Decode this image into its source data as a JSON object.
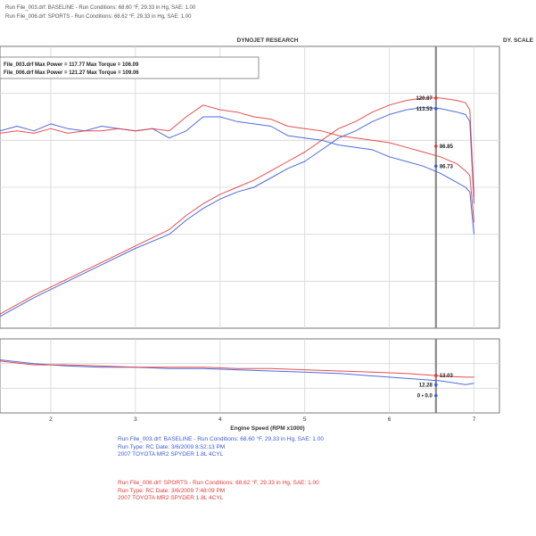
{
  "header": {
    "line1": "Run File_003.drf: BASELINE  -  Run Conditions: 68.60 °F, 29.33 in Hg, SAE: 1.00",
    "line2": "Run File_006.drf: SPORTS  -  Run Conditions: 68.62 °F, 29.33 in Hg, SAE: 1.00",
    "title": "DYNOJET RESEARCH",
    "corner": "DY. SCALE"
  },
  "chart_data": [
    {
      "type": "line",
      "title": "DYNOJET RESEARCH",
      "annotations_box": [
        "File_003.drf Max Power = 117.77     Max Torque = 106.09",
        "File_006.drf Max Power = 121.27     Max Torque = 109.06"
      ],
      "xlim": [
        1.4,
        7.3
      ],
      "ylim": [
        20,
        140
      ],
      "grid": true,
      "cursor_x": 6.55,
      "series": [
        {
          "name": "File_003.drf Power",
          "color": "#3a5bd9",
          "x": [
            1.4,
            1.8,
            2.2,
            2.6,
            3.0,
            3.4,
            3.6,
            3.8,
            4.0,
            4.2,
            4.4,
            4.6,
            4.8,
            5.0,
            5.2,
            5.4,
            5.6,
            5.8,
            6.0,
            6.2,
            6.4,
            6.6,
            6.8,
            6.9,
            6.95,
            7.0
          ],
          "y": [
            25,
            33,
            40,
            47,
            54,
            60,
            66,
            71,
            75,
            78,
            80,
            84,
            88,
            91,
            96,
            101,
            104,
            108,
            111,
            113,
            114,
            113.5,
            112,
            111,
            108,
            73
          ]
        },
        {
          "name": "File_006.drf Power",
          "color": "#e23b3b",
          "x": [
            1.4,
            1.8,
            2.2,
            2.6,
            3.0,
            3.4,
            3.6,
            3.8,
            4.0,
            4.2,
            4.4,
            4.6,
            4.8,
            5.0,
            5.2,
            5.4,
            5.6,
            5.8,
            6.0,
            6.2,
            6.4,
            6.6,
            6.8,
            6.9,
            6.95,
            7.0
          ],
          "y": [
            26,
            34,
            41,
            48,
            55,
            62,
            68,
            73,
            77,
            80,
            83,
            87,
            91,
            95,
            100,
            105,
            108,
            112,
            115,
            117,
            118,
            118,
            117,
            116,
            113,
            76
          ]
        },
        {
          "name": "File_003.drf Torque",
          "color": "#3a5bd9",
          "x": [
            1.4,
            1.6,
            1.8,
            2.0,
            2.2,
            2.4,
            2.6,
            2.8,
            3.0,
            3.2,
            3.4,
            3.6,
            3.8,
            4.0,
            4.2,
            4.4,
            4.6,
            4.8,
            5.0,
            5.2,
            5.4,
            5.6,
            5.8,
            6.0,
            6.2,
            6.4,
            6.6,
            6.8,
            6.9,
            6.95,
            7.0
          ],
          "y": [
            104,
            106,
            104,
            107,
            105,
            104,
            106,
            105,
            104,
            105,
            101,
            104,
            110,
            110,
            108,
            107,
            106,
            102,
            101,
            100,
            98,
            97,
            96,
            93,
            91,
            89,
            86,
            82,
            80,
            78,
            60
          ]
        },
        {
          "name": "File_006.drf Torque",
          "color": "#e23b3b",
          "x": [
            1.4,
            1.6,
            1.8,
            2.0,
            2.2,
            2.4,
            2.6,
            2.8,
            3.0,
            3.2,
            3.4,
            3.6,
            3.8,
            4.0,
            4.2,
            4.4,
            4.6,
            4.8,
            5.0,
            5.2,
            5.4,
            5.6,
            5.8,
            6.0,
            6.2,
            6.4,
            6.6,
            6.8,
            6.9,
            6.95,
            7.0
          ],
          "y": [
            103,
            104,
            103,
            105,
            103,
            104,
            104,
            105,
            104,
            105,
            104,
            110,
            115,
            113,
            112,
            110,
            109,
            106,
            105,
            104,
            102,
            101,
            100,
            99,
            97,
            95,
            93,
            90,
            87,
            85,
            65
          ]
        }
      ],
      "markers": [
        {
          "label": "120.87",
          "x": 6.55,
          "y": 118,
          "color": "#e23b3b"
        },
        {
          "label": "113.53",
          "x": 6.55,
          "y": 113.5,
          "color": "#3a5bd9"
        },
        {
          "label": "86.85",
          "x": 6.55,
          "y": 97.5,
          "color": "#e23b3b"
        },
        {
          "label": "86.73",
          "x": 6.55,
          "y": 89,
          "color": "#3a5bd9"
        }
      ]
    },
    {
      "type": "line",
      "xlabel": "Engine Speed (RPM x1000)",
      "xticks": [
        2,
        3,
        4,
        5,
        6,
        7
      ],
      "xlim": [
        1.4,
        7.3
      ],
      "ylim": [
        10,
        16
      ],
      "grid": true,
      "cursor_x": 6.55,
      "series": [
        {
          "name": "File_003.drf AFR",
          "color": "#3a5bd9",
          "x": [
            1.4,
            1.8,
            2.2,
            2.6,
            3.0,
            3.4,
            3.8,
            4.2,
            4.6,
            5.0,
            5.4,
            5.8,
            6.2,
            6.6,
            6.9,
            7.0
          ],
          "y": [
            14.3,
            14.0,
            13.8,
            13.7,
            13.7,
            13.6,
            13.6,
            13.5,
            13.4,
            13.3,
            13.2,
            13.0,
            12.8,
            12.6,
            12.3,
            12.4
          ]
        },
        {
          "name": "File_006.drf AFR",
          "color": "#e23b3b",
          "x": [
            1.4,
            1.8,
            2.2,
            2.6,
            3.0,
            3.4,
            3.8,
            4.2,
            4.6,
            5.0,
            5.4,
            5.8,
            6.2,
            6.6,
            6.9,
            7.0
          ],
          "y": [
            14.2,
            13.9,
            13.9,
            13.8,
            13.7,
            13.7,
            13.7,
            13.6,
            13.6,
            13.5,
            13.4,
            13.3,
            13.2,
            13.0,
            12.9,
            12.9
          ]
        }
      ],
      "markers": [
        {
          "label": "13.03",
          "x": 6.55,
          "y": 13.03,
          "color": "#e23b3b"
        },
        {
          "label": "12.28",
          "x": 6.55,
          "y": 12.28,
          "color": "#3a5bd9"
        },
        {
          "label": "0 • 0.0",
          "x": 6.55,
          "y": 11.4,
          "color": "#3a5bd9"
        }
      ]
    }
  ],
  "legend": {
    "blue": [
      "Run File_003.drf: BASELINE  -  Run Conditions: 68.60 °F, 29.33 in Hg, SAE: 1.00",
      "Run Type: RC Date: 3/6/2009 8:52:13 PM",
      "2007 TOYOTA MR2 SPYDER 1.8L 4CYL"
    ],
    "red": [
      "Run File_006.drf: SPORTS  -  Run Conditions: 68.62 °F, 29.33 in Hg, SAE: 1.00",
      "Run Type: RC Date: 3/6/2009 7:48:09 PM",
      "2007 TOYOTA MR2 SPYDER 1.8L 4CYL"
    ]
  }
}
